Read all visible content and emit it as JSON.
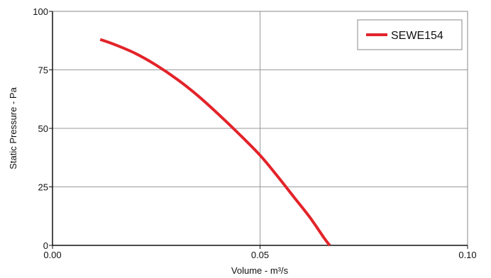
{
  "chart_data": {
    "type": "line",
    "title": "",
    "xlabel": "Volume - m³/s",
    "ylabel": "Static Pressure - Pa",
    "xlim": [
      0,
      0.1
    ],
    "ylim": [
      0,
      100
    ],
    "x_ticks": [
      0,
      0.05,
      0.1
    ],
    "x_tick_labels": [
      "0.00",
      "0.05",
      "0.10"
    ],
    "y_ticks": [
      0,
      25,
      50,
      75,
      100
    ],
    "y_tick_labels": [
      "0",
      "25",
      "50",
      "75",
      "100"
    ],
    "grid": true,
    "legend_position": "top-right",
    "series": [
      {
        "name": "SEWE154",
        "color": "#e3232a",
        "points": [
          [
            0.0115,
            88
          ],
          [
            0.015,
            85.8
          ],
          [
            0.02,
            82
          ],
          [
            0.025,
            77
          ],
          [
            0.03,
            71
          ],
          [
            0.035,
            64
          ],
          [
            0.04,
            56
          ],
          [
            0.045,
            47.5
          ],
          [
            0.05,
            38.5
          ],
          [
            0.054,
            30
          ],
          [
            0.058,
            21
          ],
          [
            0.062,
            12
          ],
          [
            0.0655,
            3
          ],
          [
            0.0668,
            0
          ]
        ]
      }
    ]
  }
}
